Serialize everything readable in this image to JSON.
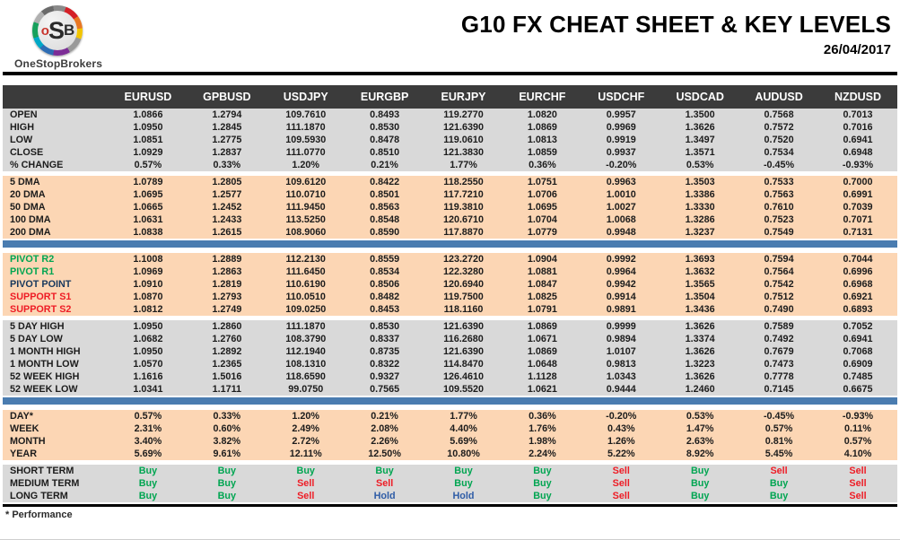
{
  "brand": {
    "monogram_o": "o",
    "monogram_s": "S",
    "monogram_b": "B",
    "name": "OneStopBrokers"
  },
  "header": {
    "title": "G10 FX CHEAT SHEET & KEY LEVELS",
    "date": "26/04/2017"
  },
  "footer": {
    "note": "* Performance"
  },
  "colors": {
    "header_bg": "#3b3b3b",
    "gray_band": "#d9d9d9",
    "peach_band": "#fcd6b4",
    "blue_bar": "#4a7cb0",
    "label_green": "#00a551",
    "label_navy": "#17375d",
    "label_red": "#ee1c25",
    "signal": {
      "Buy": "#00a551",
      "Sell": "#ee1c25",
      "Hold": "#2e5ca6"
    }
  },
  "table": {
    "columns": [
      "EURUSD",
      "GPBUSD",
      "USDJPY",
      "EURGBP",
      "EURJPY",
      "EURCHF",
      "USDCHF",
      "USDCAD",
      "AUDUSD",
      "NZDUSD"
    ],
    "sections": [
      {
        "id": "ohlc",
        "band": "gray",
        "bar_after": false,
        "rows": [
          {
            "label": "OPEN",
            "values": [
              "1.0866",
              "1.2794",
              "109.7610",
              "0.8493",
              "119.2770",
              "1.0820",
              "0.9957",
              "1.3500",
              "0.7568",
              "0.7013"
            ]
          },
          {
            "label": "HIGH",
            "values": [
              "1.0950",
              "1.2845",
              "111.1870",
              "0.8530",
              "121.6390",
              "1.0869",
              "0.9969",
              "1.3626",
              "0.7572",
              "0.7016"
            ]
          },
          {
            "label": "LOW",
            "values": [
              "1.0851",
              "1.2775",
              "109.5930",
              "0.8478",
              "119.0610",
              "1.0813",
              "0.9919",
              "1.3497",
              "0.7520",
              "0.6941"
            ]
          },
          {
            "label": "CLOSE",
            "values": [
              "1.0929",
              "1.2837",
              "111.0770",
              "0.8510",
              "121.3830",
              "1.0859",
              "0.9937",
              "1.3571",
              "0.7534",
              "0.6948"
            ]
          },
          {
            "label": "% CHANGE",
            "values": [
              "0.57%",
              "0.33%",
              "1.20%",
              "0.21%",
              "1.77%",
              "0.36%",
              "-0.20%",
              "0.53%",
              "-0.45%",
              "-0.93%"
            ]
          }
        ]
      },
      {
        "id": "dma",
        "band": "peach",
        "bar_after": true,
        "rows": [
          {
            "label": "5 DMA",
            "values": [
              "1.0789",
              "1.2805",
              "109.6120",
              "0.8422",
              "118.2550",
              "1.0751",
              "0.9963",
              "1.3503",
              "0.7533",
              "0.7000"
            ]
          },
          {
            "label": "20 DMA",
            "values": [
              "1.0695",
              "1.2577",
              "110.0710",
              "0.8501",
              "117.7210",
              "1.0706",
              "1.0010",
              "1.3386",
              "0.7563",
              "0.6991"
            ]
          },
          {
            "label": "50 DMA",
            "values": [
              "1.0665",
              "1.2452",
              "111.9450",
              "0.8563",
              "119.3810",
              "1.0695",
              "1.0027",
              "1.3330",
              "0.7610",
              "0.7039"
            ]
          },
          {
            "label": "100 DMA",
            "values": [
              "1.0631",
              "1.2433",
              "113.5250",
              "0.8548",
              "120.6710",
              "1.0704",
              "1.0068",
              "1.3286",
              "0.7523",
              "0.7071"
            ]
          },
          {
            "label": "200 DMA",
            "values": [
              "1.0838",
              "1.2615",
              "108.9060",
              "0.8590",
              "117.8870",
              "1.0779",
              "0.9948",
              "1.3237",
              "0.7549",
              "0.7131"
            ]
          }
        ]
      },
      {
        "id": "pivots",
        "band": "peach",
        "bar_after": false,
        "rows": [
          {
            "label": "PIVOT R2",
            "label_color": "label_green",
            "values": [
              "1.1008",
              "1.2889",
              "112.2130",
              "0.8559",
              "123.2720",
              "1.0904",
              "0.9992",
              "1.3693",
              "0.7594",
              "0.7044"
            ]
          },
          {
            "label": "PIVOT R1",
            "label_color": "label_green",
            "values": [
              "1.0969",
              "1.2863",
              "111.6450",
              "0.8534",
              "122.3280",
              "1.0881",
              "0.9964",
              "1.3632",
              "0.7564",
              "0.6996"
            ]
          },
          {
            "label": "PIVOT POINT",
            "label_color": "label_navy",
            "values": [
              "1.0910",
              "1.2819",
              "110.6190",
              "0.8506",
              "120.6940",
              "1.0847",
              "0.9942",
              "1.3565",
              "0.7542",
              "0.6968"
            ]
          },
          {
            "label": "SUPPORT S1",
            "label_color": "label_red",
            "values": [
              "1.0870",
              "1.2793",
              "110.0510",
              "0.8482",
              "119.7500",
              "1.0825",
              "0.9914",
              "1.3504",
              "0.7512",
              "0.6921"
            ]
          },
          {
            "label": "SUPPORT S2",
            "label_color": "label_red",
            "values": [
              "1.0812",
              "1.2749",
              "109.0250",
              "0.8453",
              "118.1160",
              "1.0791",
              "0.9891",
              "1.3436",
              "0.7490",
              "0.6893"
            ]
          }
        ]
      },
      {
        "id": "ranges",
        "band": "gray",
        "bar_after": true,
        "rows": [
          {
            "label": "5 DAY HIGH",
            "values": [
              "1.0950",
              "1.2860",
              "111.1870",
              "0.8530",
              "121.6390",
              "1.0869",
              "0.9999",
              "1.3626",
              "0.7589",
              "0.7052"
            ]
          },
          {
            "label": "5 DAY LOW",
            "values": [
              "1.0682",
              "1.2760",
              "108.3790",
              "0.8337",
              "116.2680",
              "1.0671",
              "0.9894",
              "1.3374",
              "0.7492",
              "0.6941"
            ]
          },
          {
            "label": "1 MONTH HIGH",
            "values": [
              "1.0950",
              "1.2892",
              "112.1940",
              "0.8735",
              "121.6390",
              "1.0869",
              "1.0107",
              "1.3626",
              "0.7679",
              "0.7068"
            ]
          },
          {
            "label": "1 MONTH LOW",
            "values": [
              "1.0570",
              "1.2365",
              "108.1310",
              "0.8322",
              "114.8470",
              "1.0648",
              "0.9813",
              "1.3223",
              "0.7473",
              "0.6909"
            ]
          },
          {
            "label": "52 WEEK HIGH",
            "values": [
              "1.1616",
              "1.5016",
              "118.6590",
              "0.9327",
              "126.4610",
              "1.1128",
              "1.0343",
              "1.3626",
              "0.7778",
              "0.7485"
            ]
          },
          {
            "label": "52 WEEK LOW",
            "values": [
              "1.0341",
              "1.1711",
              "99.0750",
              "0.7565",
              "109.5520",
              "1.0621",
              "0.9444",
              "1.2460",
              "0.7145",
              "0.6675"
            ]
          }
        ]
      },
      {
        "id": "performance",
        "band": "peach",
        "bar_after": false,
        "rows": [
          {
            "label": "DAY*",
            "values": [
              "0.57%",
              "0.33%",
              "1.20%",
              "0.21%",
              "1.77%",
              "0.36%",
              "-0.20%",
              "0.53%",
              "-0.45%",
              "-0.93%"
            ]
          },
          {
            "label": "WEEK",
            "values": [
              "2.31%",
              "0.60%",
              "2.49%",
              "2.08%",
              "4.40%",
              "1.76%",
              "0.43%",
              "1.47%",
              "0.57%",
              "0.11%"
            ]
          },
          {
            "label": "MONTH",
            "values": [
              "3.40%",
              "3.82%",
              "2.72%",
              "2.26%",
              "5.69%",
              "1.98%",
              "1.26%",
              "2.63%",
              "0.81%",
              "0.57%"
            ]
          },
          {
            "label": "YEAR",
            "values": [
              "5.69%",
              "9.61%",
              "12.11%",
              "12.50%",
              "10.80%",
              "2.24%",
              "5.22%",
              "8.92%",
              "5.45%",
              "4.10%"
            ]
          }
        ]
      },
      {
        "id": "trend",
        "band": "gray",
        "bar_after": false,
        "type": "signal",
        "rows": [
          {
            "label": "SHORT TERM",
            "values": [
              "Buy",
              "Buy",
              "Buy",
              "Buy",
              "Buy",
              "Buy",
              "Sell",
              "Buy",
              "Sell",
              "Sell"
            ]
          },
          {
            "label": "MEDIUM TERM",
            "values": [
              "Buy",
              "Buy",
              "Sell",
              "Sell",
              "Buy",
              "Buy",
              "Sell",
              "Buy",
              "Buy",
              "Sell"
            ]
          },
          {
            "label": "LONG TERM",
            "values": [
              "Buy",
              "Buy",
              "Sell",
              "Hold",
              "Hold",
              "Buy",
              "Sell",
              "Buy",
              "Buy",
              "Sell"
            ]
          }
        ]
      }
    ]
  }
}
